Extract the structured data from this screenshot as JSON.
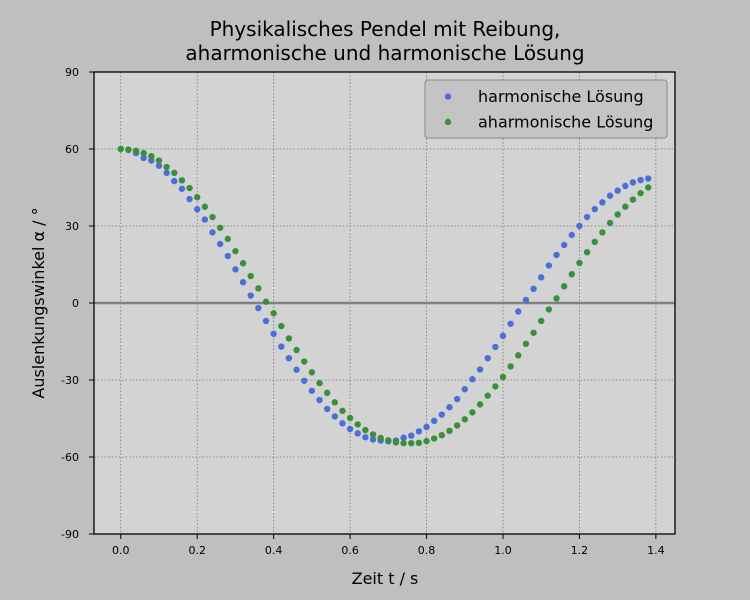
{
  "chart_data": {
    "type": "scatter",
    "title": "Physikalisches Pendel mit Reibung,",
    "subtitle": "aharmonische und harmonische Lösung",
    "xlabel": "Zeit t / s",
    "ylabel": "Auslenkungswinkel α / °",
    "xlim": [
      -0.07,
      1.45
    ],
    "ylim": [
      -90,
      90
    ],
    "xticks": [
      0.0,
      0.2,
      0.4,
      0.6,
      0.8,
      1.0,
      1.2,
      1.4
    ],
    "xtick_labels": [
      "0.0",
      "0.2",
      "0.4",
      "0.6",
      "0.8",
      "1.0",
      "1.2",
      "1.4"
    ],
    "yticks": [
      -90,
      -60,
      -30,
      0,
      30,
      60,
      90
    ],
    "ytick_labels": [
      "-90",
      "-60",
      "-30",
      "0",
      "30",
      "60",
      "90"
    ],
    "grid": true,
    "zero_line": true,
    "legend_position": "upper right",
    "colors": {
      "figure_background": "#bfbfbf",
      "axes_background": "#d3d3d3",
      "grid": "#777777",
      "zero_line": "#808080",
      "legend_background": "#c4c4c4"
    },
    "series": [
      {
        "name": "harmonische Lösung",
        "color": "#4a6fd6",
        "x": [
          0.0,
          0.02,
          0.04,
          0.06,
          0.08,
          0.1,
          0.12,
          0.14,
          0.16,
          0.18,
          0.2,
          0.22,
          0.24,
          0.26,
          0.28,
          0.3,
          0.32,
          0.34,
          0.36,
          0.38,
          0.4,
          0.42,
          0.44,
          0.46,
          0.48,
          0.5,
          0.52,
          0.54,
          0.56,
          0.58,
          0.6,
          0.62,
          0.64,
          0.66,
          0.68,
          0.7,
          0.72,
          0.74,
          0.76,
          0.78,
          0.8,
          0.82,
          0.84,
          0.86,
          0.88,
          0.9,
          0.92,
          0.94,
          0.96,
          0.98,
          1.0,
          1.02,
          1.04,
          1.06,
          1.08,
          1.1,
          1.12,
          1.14,
          1.16,
          1.18,
          1.2,
          1.22,
          1.24,
          1.26,
          1.28,
          1.3,
          1.32,
          1.34,
          1.36,
          1.38
        ],
        "y": [
          60.0,
          59.6,
          58.4,
          56.5,
          55.5,
          53.5,
          50.7,
          47.5,
          44.5,
          40.5,
          36.5,
          32.5,
          27.5,
          23.0,
          18.3,
          13.1,
          8.1,
          2.9,
          -2.0,
          -7.0,
          -12.0,
          -17.0,
          -21.5,
          -26.0,
          -30.3,
          -34.2,
          -37.8,
          -41.3,
          -44.2,
          -46.9,
          -49.1,
          -50.8,
          -52.3,
          -53.2,
          -53.6,
          -53.9,
          -53.6,
          -52.5,
          -51.7,
          -50.0,
          -48.3,
          -45.9,
          -43.5,
          -40.6,
          -37.4,
          -33.6,
          -29.7,
          -25.9,
          -21.5,
          -17.1,
          -12.8,
          -8.1,
          -3.3,
          1.2,
          5.5,
          10.0,
          14.6,
          18.7,
          22.6,
          26.5,
          30.0,
          33.5,
          36.6,
          39.2,
          41.8,
          43.8,
          45.6,
          47.0,
          47.9,
          48.5
        ]
      },
      {
        "name": "aharmonische Lösung",
        "color": "#3a8f3a",
        "x": [
          0.0,
          0.02,
          0.04,
          0.06,
          0.08,
          0.1,
          0.12,
          0.14,
          0.16,
          0.18,
          0.2,
          0.22,
          0.24,
          0.26,
          0.28,
          0.3,
          0.32,
          0.34,
          0.36,
          0.38,
          0.4,
          0.42,
          0.44,
          0.46,
          0.48,
          0.5,
          0.52,
          0.54,
          0.56,
          0.58,
          0.6,
          0.62,
          0.64,
          0.66,
          0.68,
          0.7,
          0.72,
          0.74,
          0.76,
          0.78,
          0.8,
          0.82,
          0.84,
          0.86,
          0.88,
          0.9,
          0.92,
          0.94,
          0.96,
          0.98,
          1.0,
          1.02,
          1.04,
          1.06,
          1.08,
          1.1,
          1.12,
          1.14,
          1.16,
          1.18,
          1.2,
          1.22,
          1.24,
          1.26,
          1.28,
          1.3,
          1.32,
          1.34,
          1.36,
          1.38
        ],
        "y": [
          60.0,
          59.8,
          59.3,
          58.4,
          57.2,
          55.5,
          53.0,
          50.7,
          47.8,
          44.8,
          41.2,
          37.5,
          33.5,
          29.3,
          25.0,
          20.2,
          15.5,
          10.5,
          5.7,
          0.5,
          -4.0,
          -9.0,
          -13.8,
          -18.3,
          -22.8,
          -27.0,
          -31.2,
          -35.0,
          -38.7,
          -42.0,
          -44.8,
          -47.3,
          -49.5,
          -51.2,
          -52.6,
          -53.5,
          -54.3,
          -54.6,
          -54.6,
          -54.5,
          -53.8,
          -52.8,
          -51.5,
          -49.8,
          -47.7,
          -45.3,
          -42.6,
          -39.5,
          -36.1,
          -32.5,
          -28.8,
          -24.7,
          -20.4,
          -15.9,
          -11.6,
          -7.0,
          -2.5,
          1.8,
          6.5,
          11.2,
          15.6,
          19.8,
          23.8,
          27.5,
          31.2,
          34.5,
          37.5,
          40.3,
          42.8,
          45.0
        ]
      }
    ]
  }
}
